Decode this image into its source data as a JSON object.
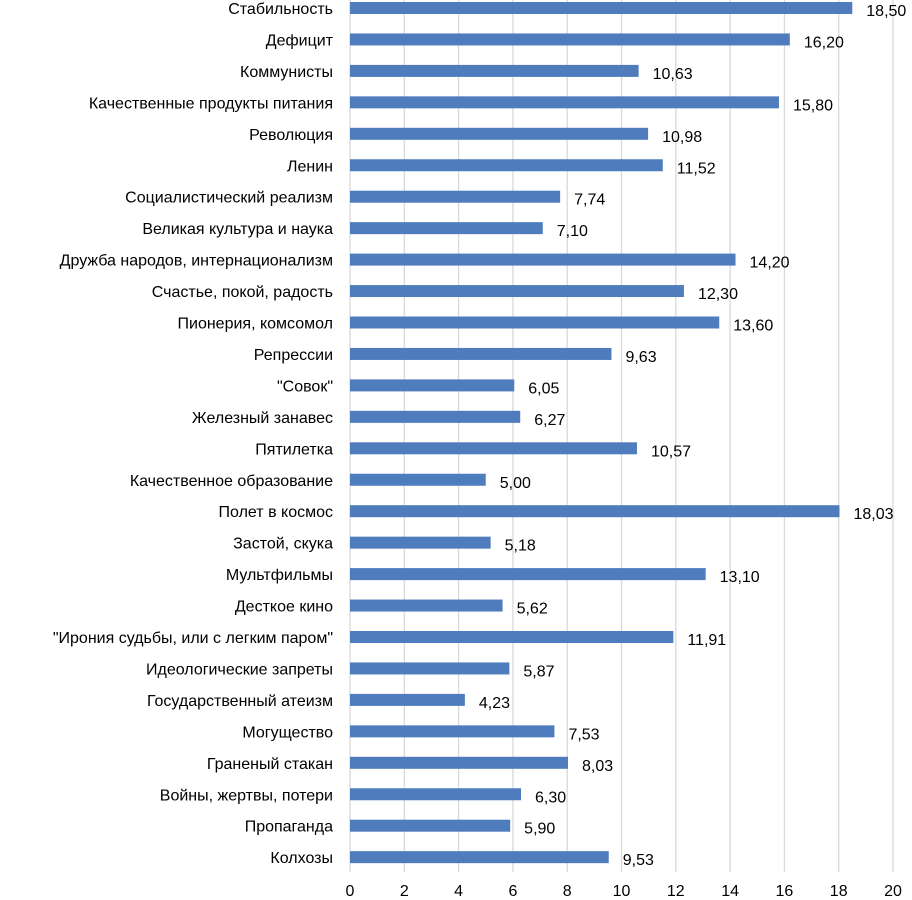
{
  "chart_data": {
    "type": "bar",
    "orientation": "horizontal",
    "title": "",
    "xlabel": "",
    "ylabel": "",
    "xlim": [
      0,
      20
    ],
    "x_ticks": [
      0,
      2,
      4,
      6,
      8,
      10,
      12,
      14,
      16,
      18,
      20
    ],
    "grid": "vertical",
    "legend": "none",
    "bar_color": "#4F7CBD",
    "decimal_separator": ",",
    "categories": [
      "Стабильность",
      "Дефицит",
      "Коммунисты",
      "Качественные продукты питания",
      "Революция",
      "Ленин",
      "Социалистический реализм",
      "Великая культура и наука",
      "Дружба народов, интернационализм",
      "Счастье, покой, радость",
      "Пионерия, комсомол",
      "Репрессии",
      "\"Совок\"",
      "Железный занавес",
      "Пятилетка",
      "Качественное образование",
      "Полет в космос",
      "Застой, скука",
      "Мультфильмы",
      "Десткое кино",
      "\"Ирония судьбы, или с легким паром\"",
      "Идеологические запреты ",
      "Государственный атеизм",
      "Могущество",
      "Граненый стакан",
      "Войны, жертвы, потери",
      "Пропаганда ",
      "Колхозы"
    ],
    "values": [
      18.5,
      16.2,
      10.63,
      15.8,
      10.98,
      11.52,
      7.74,
      7.1,
      14.2,
      12.3,
      13.6,
      9.63,
      6.05,
      6.27,
      10.57,
      5.0,
      18.03,
      5.18,
      13.1,
      5.62,
      11.91,
      5.87,
      4.23,
      7.53,
      8.03,
      6.3,
      5.9,
      9.53
    ],
    "value_labels": [
      "18,50",
      "16,20",
      "10,63",
      "15,80",
      "10,98",
      "11,52",
      "7,74",
      "7,10",
      "14,20",
      "12,30",
      "13,60",
      "9,63",
      "6,05",
      "6,27",
      "10,57",
      "5,00",
      "18,03",
      "5,18",
      "13,10",
      "5,62",
      "11,91",
      "5,87",
      "4,23",
      "7,53",
      "8,03",
      "6,30",
      "5,90",
      "9,53"
    ]
  }
}
